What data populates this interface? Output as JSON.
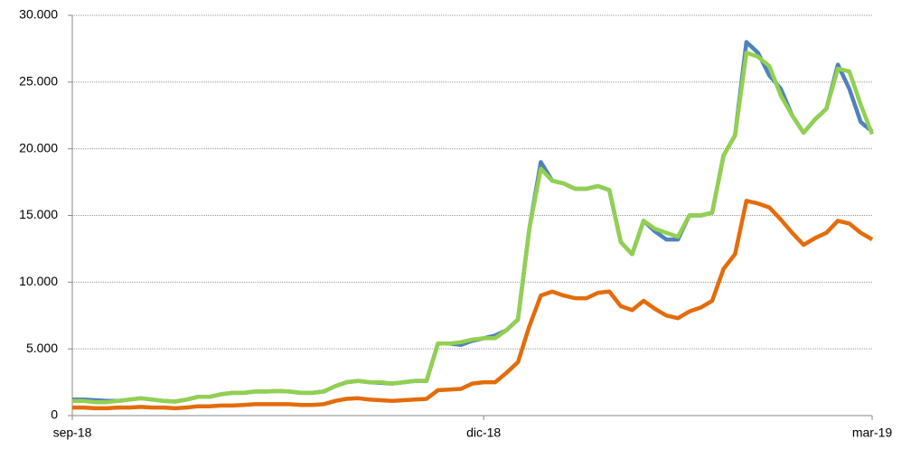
{
  "chart_data": {
    "type": "line",
    "categories": [
      "sep-18",
      null,
      null,
      null,
      null,
      null,
      null,
      null,
      null,
      null,
      null,
      null,
      null,
      null,
      null,
      null,
      null,
      null,
      null,
      null,
      null,
      null,
      null,
      null,
      null,
      null,
      null,
      null,
      null,
      null,
      null,
      null,
      null,
      null,
      null,
      null,
      "dic-18",
      null,
      null,
      null,
      null,
      null,
      null,
      null,
      null,
      null,
      null,
      null,
      null,
      null,
      null,
      null,
      null,
      null,
      null,
      null,
      null,
      null,
      null,
      null,
      null,
      null,
      null,
      null,
      null,
      null,
      null,
      null,
      null,
      null,
      "mar-19"
    ],
    "series": [
      {
        "name": "blue",
        "color": "#4f81bd",
        "values": [
          1200,
          1200,
          1150,
          1100,
          1100,
          1200,
          1300,
          1200,
          1100,
          1050,
          1200,
          1400,
          1400,
          1600,
          1700,
          1700,
          1800,
          1800,
          1850,
          1800,
          1700,
          1700,
          1800,
          2200,
          2500,
          2600,
          2500,
          2450,
          2400,
          2500,
          2600,
          2600,
          5400,
          5400,
          5300,
          5600,
          5800,
          6000,
          6400,
          7200,
          14000,
          19000,
          17600,
          17400,
          17000,
          17000,
          17200,
          16900,
          13000,
          12100,
          14600,
          13800,
          13200,
          13200,
          15000,
          15000,
          15200,
          19500,
          21000,
          28000,
          27200,
          25500,
          24500,
          22500,
          21200,
          22200,
          23000,
          26300,
          24500,
          22000,
          21300
        ]
      },
      {
        "name": "orange",
        "color": "#e46c0a",
        "values": [
          600,
          600,
          550,
          550,
          600,
          600,
          650,
          600,
          600,
          550,
          600,
          700,
          700,
          750,
          750,
          800,
          850,
          850,
          850,
          850,
          800,
          800,
          850,
          1100,
          1250,
          1300,
          1200,
          1150,
          1100,
          1150,
          1200,
          1250,
          1900,
          1950,
          2000,
          2400,
          2500,
          2500,
          3200,
          4000,
          6700,
          9000,
          9300,
          9000,
          8800,
          8800,
          9200,
          9300,
          8200,
          7900,
          8600,
          8000,
          7500,
          7300,
          7800,
          8100,
          8600,
          11000,
          12100,
          16100,
          15900,
          15600,
          14700,
          13700,
          12800,
          13300,
          13700,
          14600,
          14400,
          13700,
          13200
        ]
      },
      {
        "name": "green",
        "color": "#92d050",
        "values": [
          1100,
          1100,
          1000,
          1000,
          1100,
          1200,
          1300,
          1200,
          1100,
          1050,
          1200,
          1400,
          1400,
          1600,
          1700,
          1700,
          1800,
          1800,
          1850,
          1800,
          1700,
          1700,
          1800,
          2200,
          2500,
          2600,
          2500,
          2500,
          2400,
          2500,
          2600,
          2600,
          5400,
          5400,
          5500,
          5700,
          5800,
          5800,
          6400,
          7200,
          14000,
          18500,
          17600,
          17400,
          17000,
          17000,
          17200,
          16900,
          13000,
          12100,
          14600,
          14000,
          13700,
          13400,
          15000,
          15000,
          15200,
          19500,
          21000,
          27200,
          26900,
          26200,
          24000,
          22500,
          21200,
          22200,
          23000,
          26000,
          25800,
          23300,
          21100
        ]
      }
    ],
    "ylim": [
      0,
      30000
    ],
    "yticks": [
      0,
      {
        "value": 5000,
        "label": "5.000"
      },
      {
        "value": 10000,
        "label": "10.000"
      },
      {
        "value": 15000,
        "label": "15.000"
      },
      {
        "value": 20000,
        "label": "20.000"
      },
      {
        "value": 25000,
        "label": "25.000"
      },
      {
        "value": 30000,
        "label": "30.000"
      }
    ],
    "grid": true
  }
}
